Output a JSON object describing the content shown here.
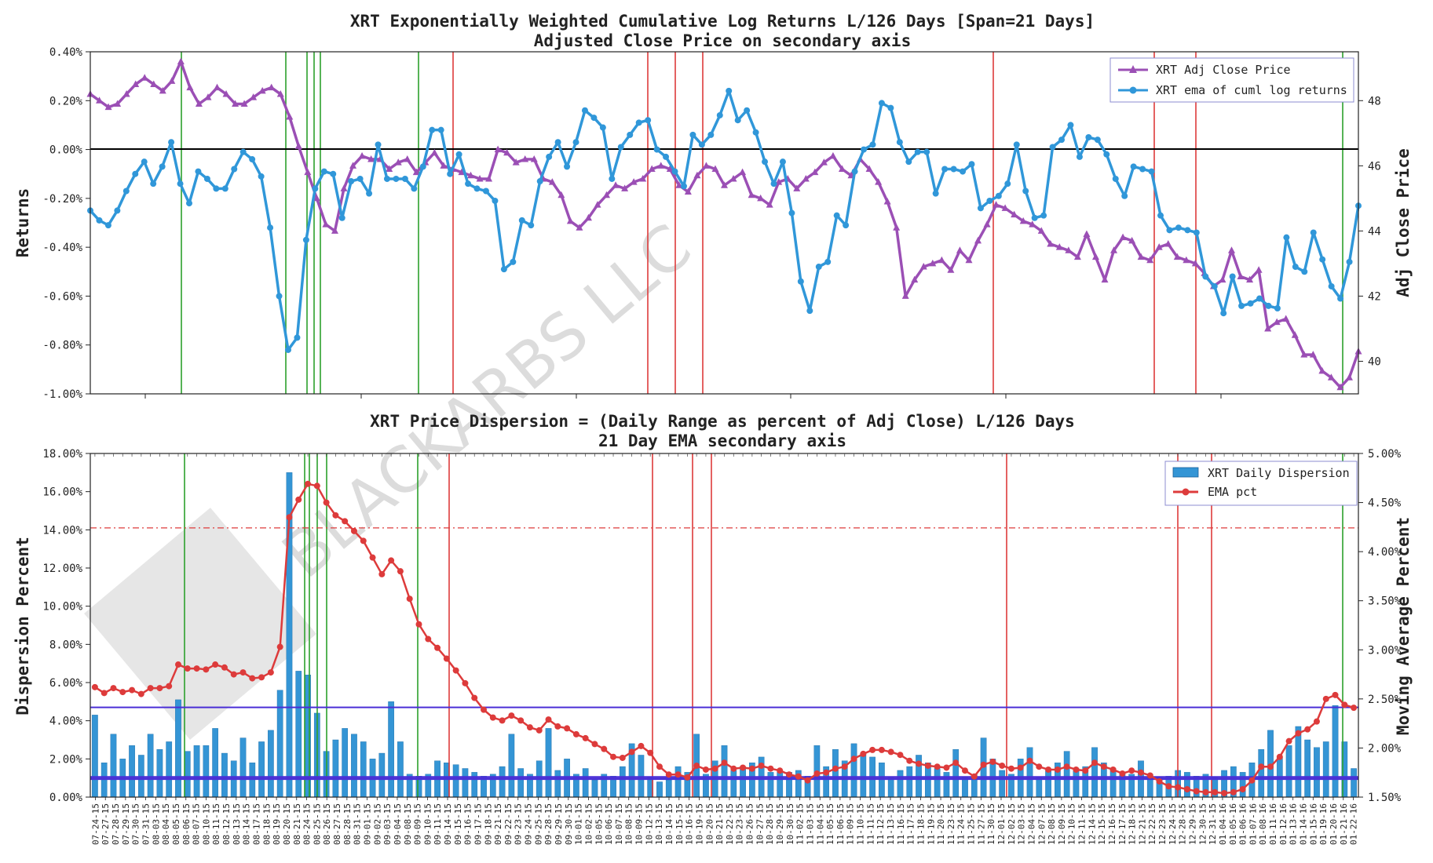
{
  "colors": {
    "purple": "#9b4fb5",
    "blue": "#3097d9",
    "red": "#dd3b3b",
    "green": "#2ca02c",
    "band": "#4a2fd6",
    "bar": "#3495d5"
  },
  "watermark": "BLACKARBS LLC",
  "chart_data": [
    {
      "type": "line",
      "title": "XRT Exponentially Weighted Cumulative Log Returns L/126 Days [Span=21 Days]",
      "subtitle": "Adjusted Close Price on secondary axis",
      "ylabel": "Returns",
      "y2label": "Adj Close Price",
      "ylim": [
        -1.0,
        0.4
      ],
      "y2lim": [
        39.0,
        49.5
      ],
      "yticks": [
        "-1.00%",
        "-0.80%",
        "-0.60%",
        "-0.40%",
        "-0.20%",
        "0.00%",
        "0.20%",
        "0.40%"
      ],
      "y2ticks": [
        "40",
        "42",
        "44",
        "46",
        "48"
      ],
      "grid": false,
      "legend_position": "top-right",
      "legend": [
        "XRT Adj Close Price",
        "XRT ema of cuml log returns"
      ],
      "series": [
        {
          "name": "XRT Adj Close Price",
          "axis": "secondary",
          "values": [
            48.2,
            48.0,
            47.8,
            47.9,
            48.2,
            48.5,
            48.7,
            48.5,
            48.3,
            48.6,
            49.2,
            48.4,
            47.9,
            48.1,
            48.4,
            48.2,
            47.9,
            47.9,
            48.1,
            48.3,
            48.4,
            48.2,
            47.5,
            46.6,
            45.8,
            45.0,
            44.2,
            44.0,
            45.3,
            46.0,
            46.3,
            46.2,
            46.2,
            45.9,
            46.1,
            46.2,
            45.8,
            46.1,
            46.4,
            46.0,
            45.9,
            45.8,
            45.7,
            45.6,
            45.6,
            46.5,
            46.4,
            46.1,
            46.2,
            46.2,
            45.6,
            45.5,
            45.1,
            44.3,
            44.1,
            44.4,
            44.8,
            45.1,
            45.4,
            45.3,
            45.5,
            45.6,
            45.9,
            46.0,
            45.9,
            45.4,
            45.2,
            45.7,
            46.0,
            45.9,
            45.4,
            45.6,
            45.8,
            45.1,
            45.0,
            44.8,
            45.5,
            45.6,
            45.3,
            45.6,
            45.8,
            46.1,
            46.3,
            45.9,
            45.7,
            46.2,
            45.9,
            45.5,
            44.9,
            44.1,
            42.0,
            42.5,
            42.9,
            43.0,
            43.1,
            42.8,
            43.4,
            43.1,
            43.7,
            44.2,
            44.8,
            44.7,
            44.5,
            44.3,
            44.2,
            44.0,
            43.6,
            43.5,
            43.4,
            43.2,
            43.9,
            43.2,
            42.5,
            43.4,
            43.8,
            43.7,
            43.2,
            43.1,
            43.5,
            43.6,
            43.2,
            43.1,
            43.0,
            42.7,
            42.3,
            42.5,
            43.4,
            42.6,
            42.5,
            42.8,
            41.0,
            41.2,
            41.3,
            40.8,
            40.2,
            40.2,
            39.7,
            39.5,
            39.2,
            39.5,
            40.3
          ],
          "note": null
        },
        {
          "name": "XRT ema of cuml log returns",
          "axis": "primary",
          "values": [
            -0.25,
            -0.29,
            -0.31,
            -0.25,
            -0.17,
            -0.1,
            -0.05,
            -0.14,
            -0.07,
            0.03,
            -0.14,
            -0.22,
            -0.09,
            -0.12,
            -0.16,
            -0.16,
            -0.08,
            -0.01,
            -0.04,
            -0.11,
            -0.32,
            -0.6,
            -0.82,
            -0.77,
            -0.37,
            -0.16,
            -0.09,
            -0.1,
            -0.28,
            -0.13,
            -0.12,
            -0.18,
            0.02,
            -0.12,
            -0.12,
            -0.12,
            -0.16,
            -0.07,
            0.08,
            0.08,
            -0.1,
            -0.02,
            -0.14,
            -0.16,
            -0.17,
            -0.21,
            -0.49,
            -0.46,
            -0.29,
            -0.31,
            -0.13,
            -0.03,
            0.03,
            -0.07,
            0.03,
            0.16,
            0.13,
            0.09,
            -0.12,
            0.01,
            0.06,
            0.11,
            0.12,
            0.0,
            -0.03,
            -0.09,
            -0.15,
            0.06,
            0.02,
            0.06,
            0.14,
            0.24,
            0.12,
            0.16,
            0.07,
            -0.05,
            -0.14,
            -0.05,
            -0.26,
            -0.54,
            -0.66,
            -0.48,
            -0.46,
            -0.27,
            -0.31,
            -0.09,
            0.0,
            0.02,
            0.19,
            0.17,
            0.03,
            -0.05,
            -0.01,
            -0.01,
            -0.18,
            -0.08,
            -0.08,
            -0.09,
            -0.06,
            -0.24,
            -0.21,
            -0.19,
            -0.14,
            0.02,
            -0.17,
            -0.28,
            -0.27,
            0.01,
            0.04,
            0.1,
            -0.03,
            0.05,
            0.04,
            -0.02,
            -0.12,
            -0.19,
            -0.07,
            -0.08,
            -0.09,
            -0.27,
            -0.33,
            -0.32,
            -0.33,
            -0.34,
            -0.52,
            -0.56,
            -0.67,
            -0.52,
            -0.64,
            -0.63,
            -0.61,
            -0.64,
            -0.65,
            -0.36,
            -0.48,
            -0.5,
            -0.34,
            -0.45,
            -0.56,
            -0.61,
            -0.46,
            -0.23
          ]
        }
      ]
    },
    {
      "type": "bar",
      "title": "XRT Price Dispersion = (Daily Range as percent of Adj Close) L/126 Days",
      "subtitle": "21 Day EMA secondary axis",
      "ylabel": "Dispersion Percent",
      "y2label": "Moving Average Percent",
      "ylim": [
        0,
        18
      ],
      "y2lim": [
        1.5,
        5.0
      ],
      "yticks": [
        "0.00%",
        "2.00%",
        "4.00%",
        "6.00%",
        "8.00%",
        "10.00%",
        "12.00%",
        "14.00%",
        "16.00%",
        "18.00%"
      ],
      "y2ticks": [
        "1.50%",
        "2.00%",
        "2.50%",
        "3.00%",
        "3.50%",
        "4.00%",
        "4.50%",
        "5.00%"
      ],
      "grid": false,
      "legend_position": "top-right",
      "legend": [
        "XRT Daily Dispersion",
        "EMA pct"
      ],
      "reference_lines": {
        "upper_dashdot": 14.1,
        "band_high": 4.7,
        "band_low_1": 1.05,
        "band_low_2": 0.95
      },
      "series": [
        {
          "name": "XRT Daily Dispersion",
          "axis": "primary",
          "values": [
            4.3,
            1.8,
            3.3,
            2.0,
            2.7,
            2.2,
            3.3,
            2.5,
            2.9,
            5.1,
            2.4,
            2.7,
            2.7,
            3.6,
            2.3,
            1.9,
            3.1,
            1.8,
            2.9,
            3.5,
            5.6,
            17.0,
            6.6,
            6.4,
            4.4,
            2.4,
            3.0,
            3.6,
            3.3,
            2.9,
            2.0,
            2.3,
            5.0,
            2.9,
            1.2,
            1.1,
            1.2,
            1.9,
            1.8,
            1.7,
            1.5,
            1.3,
            1.1,
            1.2,
            1.6,
            3.3,
            1.5,
            1.2,
            1.9,
            3.6,
            1.4,
            2.0,
            1.2,
            1.5,
            0.9,
            1.2,
            1.1,
            1.6,
            2.8,
            2.2,
            1.0,
            0.8,
            0.9,
            1.6,
            1.3,
            3.3,
            1.2,
            1.9,
            2.7,
            1.4,
            1.6,
            1.8,
            2.1,
            1.3,
            1.3,
            1.3,
            1.4,
            1.1,
            2.7,
            1.6,
            2.5,
            1.9,
            2.8,
            2.3,
            2.1,
            1.8,
            1.0,
            1.4,
            1.6,
            2.2,
            1.8,
            1.5,
            1.3,
            2.5,
            1.0,
            1.2,
            3.1,
            2.0,
            1.4,
            1.2,
            2.0,
            2.6,
            1.0,
            1.4,
            1.8,
            2.4,
            1.5,
            1.6,
            2.6,
            1.8,
            1.5,
            1.3,
            1.2,
            1.9,
            1.2,
            1.0,
            1.1,
            1.4,
            1.3,
            1.1,
            1.2,
            1.0,
            1.4,
            1.6,
            1.3,
            1.8,
            2.5,
            3.5,
            2.1,
            2.7,
            3.7,
            3.0,
            2.6,
            2.9,
            4.8,
            2.9,
            1.5
          ]
        },
        {
          "name": "EMA pct",
          "axis": "secondary",
          "values": [
            2.62,
            2.56,
            2.61,
            2.57,
            2.59,
            2.55,
            2.61,
            2.61,
            2.63,
            2.85,
            2.81,
            2.81,
            2.8,
            2.85,
            2.82,
            2.75,
            2.77,
            2.71,
            2.72,
            2.77,
            3.03,
            4.35,
            4.53,
            4.69,
            4.67,
            4.5,
            4.37,
            4.31,
            4.21,
            4.11,
            3.94,
            3.77,
            3.91,
            3.8,
            3.52,
            3.26,
            3.11,
            3.02,
            2.91,
            2.79,
            2.66,
            2.51,
            2.39,
            2.31,
            2.28,
            2.33,
            2.28,
            2.21,
            2.18,
            2.29,
            2.22,
            2.2,
            2.14,
            2.1,
            2.04,
            1.99,
            1.91,
            1.9,
            1.96,
            2.02,
            1.95,
            1.81,
            1.73,
            1.73,
            1.7,
            1.82,
            1.78,
            1.79,
            1.85,
            1.79,
            1.8,
            1.79,
            1.82,
            1.79,
            1.77,
            1.73,
            1.71,
            1.67,
            1.74,
            1.75,
            1.79,
            1.81,
            1.89,
            1.94,
            1.98,
            1.98,
            1.96,
            1.93,
            1.87,
            1.84,
            1.82,
            1.81,
            1.8,
            1.85,
            1.77,
            1.71,
            1.83,
            1.86,
            1.82,
            1.79,
            1.8,
            1.87,
            1.81,
            1.78,
            1.78,
            1.81,
            1.78,
            1.77,
            1.85,
            1.81,
            1.78,
            1.74,
            1.77,
            1.75,
            1.72,
            1.66,
            1.61,
            1.6,
            1.58,
            1.56,
            1.55,
            1.55,
            1.54,
            1.55,
            1.58,
            1.67,
            1.81,
            1.81,
            1.91,
            2.07,
            2.15,
            2.19,
            2.27,
            2.5,
            2.54,
            2.44,
            2.41
          ]
        }
      ],
      "x_tick_labels": [
        "07-24-15",
        "07-27-15",
        "07-28-15",
        "07-29-15",
        "07-30-15",
        "07-31-15",
        "08-03-15",
        "08-04-15",
        "08-05-15",
        "08-06-15",
        "08-07-15",
        "08-10-15",
        "08-11-15",
        "08-12-15",
        "08-13-15",
        "08-14-15",
        "08-17-15",
        "08-18-15",
        "08-19-15",
        "08-20-15",
        "08-21-15",
        "08-24-15",
        "08-25-15",
        "08-26-15",
        "08-27-15",
        "08-28-15",
        "08-31-15",
        "09-01-15",
        "09-02-15",
        "09-03-15",
        "09-04-15",
        "09-08-15",
        "09-09-15",
        "09-10-15",
        "09-11-15",
        "09-14-15",
        "09-15-15",
        "09-16-15",
        "09-17-15",
        "09-18-15",
        "09-21-15",
        "09-22-15",
        "09-23-15",
        "09-24-15",
        "09-25-15",
        "09-28-15",
        "09-29-15",
        "09-30-15",
        "10-01-15",
        "10-02-15",
        "10-05-15",
        "10-06-15",
        "10-07-15",
        "10-08-15",
        "10-09-15",
        "10-12-15",
        "10-13-15",
        "10-14-15",
        "10-15-15",
        "10-16-15",
        "10-19-15",
        "10-20-15",
        "10-21-15",
        "10-22-15",
        "10-23-15",
        "10-26-15",
        "10-27-15",
        "10-28-15",
        "10-29-15",
        "10-30-15",
        "11-02-15",
        "11-03-15",
        "11-04-15",
        "11-05-15",
        "11-06-15",
        "11-09-15",
        "11-10-15",
        "11-11-15",
        "11-12-15",
        "11-13-15",
        "11-16-15",
        "11-17-15",
        "11-18-15",
        "11-19-15",
        "11-20-15",
        "11-23-15",
        "11-24-15",
        "11-25-15",
        "11-27-15",
        "11-30-15",
        "12-01-15",
        "12-02-15",
        "12-03-15",
        "12-04-15",
        "12-07-15",
        "12-08-15",
        "12-09-15",
        "12-10-15",
        "12-11-15",
        "12-14-15",
        "12-15-15",
        "12-16-15",
        "12-17-15",
        "12-18-15",
        "12-21-15",
        "12-22-15",
        "12-23-15",
        "12-24-15",
        "12-28-15",
        "12-29-15",
        "12-30-15",
        "12-31-15",
        "01-04-16",
        "01-05-16",
        "01-06-16",
        "01-07-16",
        "01-08-16",
        "01-11-16",
        "01-12-16",
        "01-13-16",
        "01-14-16",
        "01-15-16",
        "01-19-16",
        "01-20-16",
        "01-21-16",
        "01-22-16"
      ]
    }
  ]
}
